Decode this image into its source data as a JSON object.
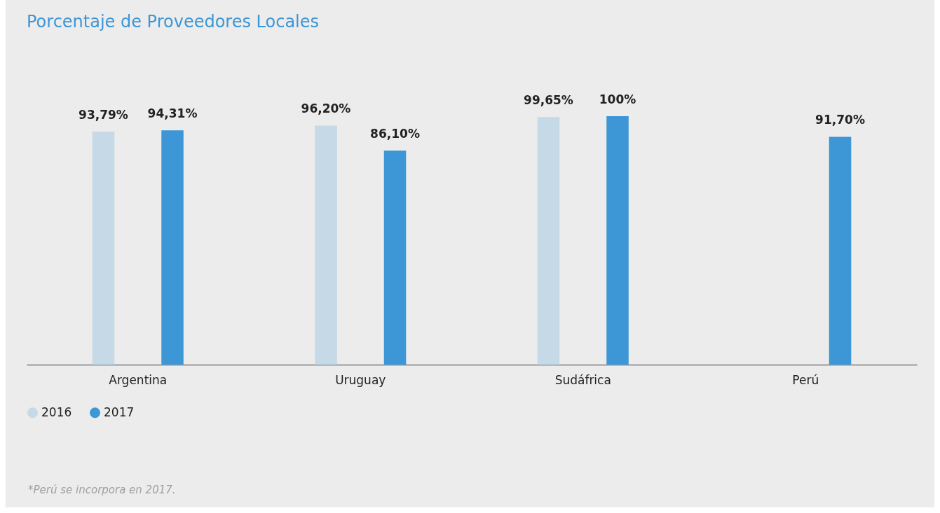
{
  "chart_data": {
    "type": "bar",
    "title": "Porcentaje de Proveedores Locales",
    "categories": [
      "Argentina",
      "Uruguay",
      "Sudáfrica",
      "Perú"
    ],
    "series": [
      {
        "name": "2016",
        "color": "#c5d9e6",
        "values": [
          93.79,
          96.2,
          99.65,
          null
        ],
        "value_labels": [
          "93,79%",
          "96,20%",
          "99,65%",
          null
        ]
      },
      {
        "name": "2017",
        "color": "#3d96d5",
        "values": [
          94.31,
          86.1,
          100,
          91.7
        ],
        "value_labels": [
          "94,31%",
          "86,10%",
          "100%",
          "91,70%"
        ]
      }
    ],
    "legend": "bottom",
    "annotations": [
      "*Perú se incorpora en 2017."
    ]
  }
}
